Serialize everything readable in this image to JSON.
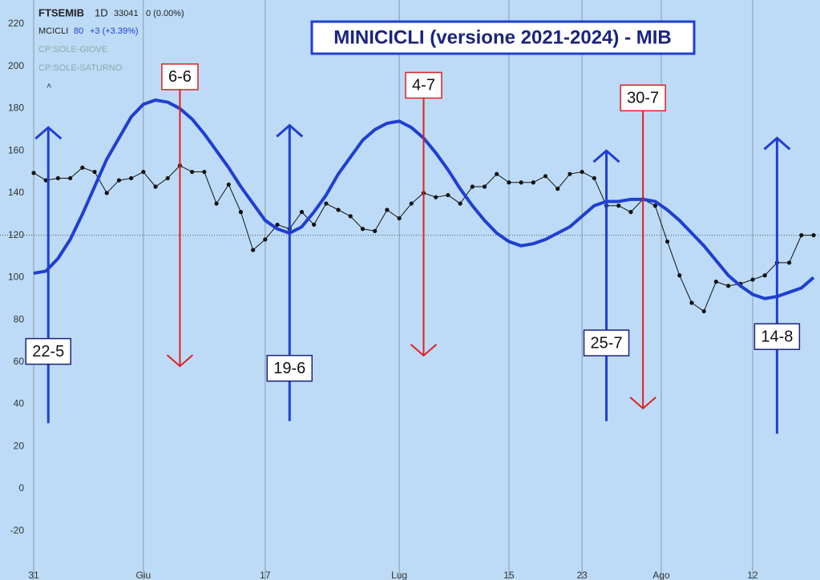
{
  "chart_data": {
    "type": "line",
    "title": "MINICICLI (versione 2021-2024) - MIB",
    "xlim": [
      0,
      64
    ],
    "xticks": [
      {
        "value": 0,
        "label": "31"
      },
      {
        "value": 9,
        "label": "Giu"
      },
      {
        "value": 19,
        "label": "17"
      },
      {
        "value": 30,
        "label": "Lug"
      },
      {
        "value": 39,
        "label": "15"
      },
      {
        "value": 45,
        "label": "23"
      },
      {
        "value": 51.5,
        "label": "Ago"
      },
      {
        "value": 59,
        "label": "12"
      }
    ],
    "ylim": [
      -37,
      230
    ],
    "yticks": [
      -20,
      0,
      20,
      40,
      60,
      80,
      100,
      120,
      140,
      160,
      180,
      200,
      220
    ],
    "grid": "vertical",
    "price_line": 120,
    "x": [
      0,
      1,
      2,
      3,
      4,
      5,
      6,
      7,
      8,
      9,
      10,
      11,
      12,
      13,
      14,
      15,
      16,
      17,
      18,
      19,
      20,
      21,
      22,
      23,
      24,
      25,
      26,
      27,
      28,
      29,
      30,
      31,
      32,
      33,
      34,
      35,
      36,
      37,
      38,
      39,
      40,
      41,
      42,
      43,
      44,
      45,
      46,
      47,
      48,
      49,
      50,
      51,
      52,
      53,
      54,
      55,
      56,
      57,
      58,
      59,
      60,
      61,
      62,
      63,
      64
    ],
    "series": [
      {
        "name": "FTSEMIB",
        "color": "#111111",
        "markers": true,
        "values": [
          149.5,
          146,
          147,
          147,
          152,
          150,
          140,
          146,
          147,
          150,
          143,
          147,
          153,
          150,
          150,
          135,
          144,
          131,
          113,
          118,
          125,
          123,
          131,
          125,
          135,
          132,
          129,
          123,
          122,
          132,
          128,
          135,
          140,
          138,
          139,
          135,
          143,
          143,
          149,
          145,
          145,
          145,
          148,
          142,
          149,
          150,
          147,
          134,
          134,
          131,
          137,
          134,
          117,
          101,
          88,
          84,
          98,
          96,
          97,
          99,
          101,
          107,
          107,
          120,
          120
        ]
      },
      {
        "name": "MCICLI",
        "color": "#1f3fd1",
        "markers": false,
        "values": [
          102,
          103,
          109,
          118,
          130,
          143,
          156,
          166,
          176,
          182,
          184,
          183,
          180,
          175,
          168,
          160,
          152,
          143,
          135,
          127,
          123,
          121,
          124,
          131,
          139,
          149,
          157,
          165,
          170,
          173,
          174,
          171,
          166,
          159,
          151,
          142,
          134,
          127,
          121,
          117,
          115,
          116,
          118,
          121,
          124,
          129,
          134,
          136,
          136,
          137,
          137,
          136,
          132,
          127,
          121,
          115,
          108,
          101,
          96,
          92,
          90,
          91,
          93,
          95,
          100
        ]
      }
    ],
    "legend_info": [
      {
        "interval": "1D",
        "value": 33041,
        "change": "0 (0.00%)"
      },
      {
        "value": 80,
        "change": "+3 (+3.39%)"
      }
    ],
    "hidden_indicators": [
      "CP:SOLE-GIOVE",
      "CP:SOLE-SATURNO"
    ],
    "annotations": [
      {
        "label": "22-5",
        "color": "#1f3fd1",
        "x": 1.2,
        "from": 31,
        "to": 171,
        "label_y": 65
      },
      {
        "label": "6-6",
        "color": "#e02020",
        "x": 12,
        "from": 190,
        "to": 58,
        "label_y": 195
      },
      {
        "label": "19-6",
        "color": "#1f3fd1",
        "x": 21,
        "from": 32,
        "to": 172,
        "label_y": 57
      },
      {
        "label": "4-7",
        "color": "#e02020",
        "x": 32,
        "from": 190,
        "to": 63,
        "label_y": 191
      },
      {
        "label": "25-7",
        "color": "#1f3fd1",
        "x": 47,
        "from": 32,
        "to": 160,
        "label_y": 69
      },
      {
        "label": "30-7",
        "color": "#e02020",
        "x": 50,
        "from": 179,
        "to": 38,
        "label_y": 185
      },
      {
        "label": "14-8",
        "color": "#1f3fd1",
        "x": 61,
        "from": 26,
        "to": 166,
        "label_y": 72
      }
    ]
  }
}
